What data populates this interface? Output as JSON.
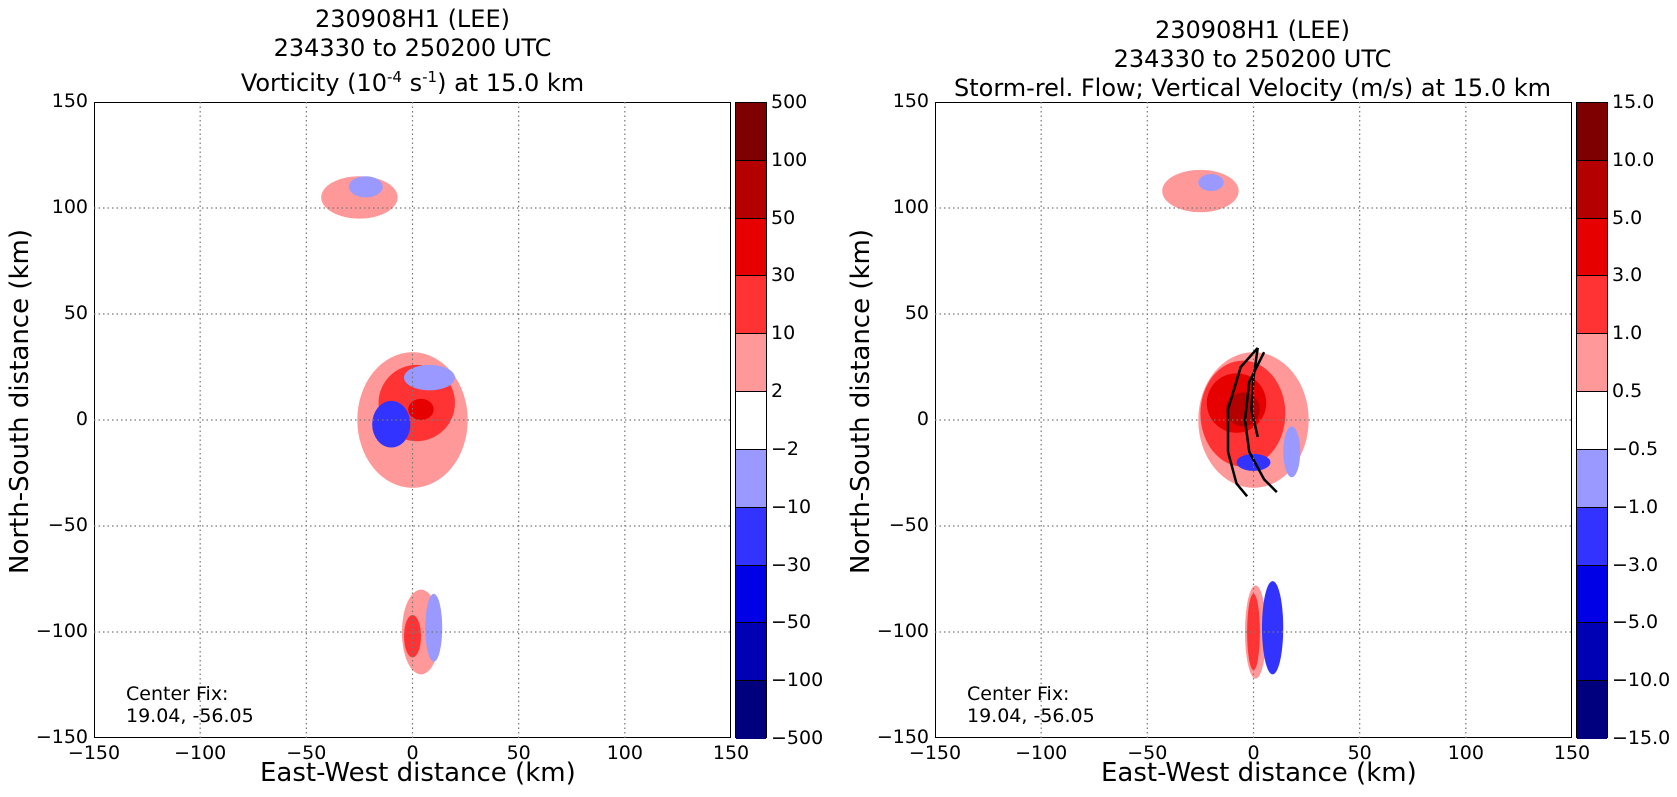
{
  "colorbar_colors": [
    "#7f0000",
    "#b50000",
    "#e60000",
    "#ff3333",
    "#ff9999",
    "#ffffff",
    "#9999ff",
    "#3333ff",
    "#0000e6",
    "#0000b5",
    "#00007f"
  ],
  "chart_data": [
    {
      "type": "heatmap",
      "title": [
        "230908H1 (LEE)",
        "234330 to 250200 UTC"
      ],
      "title_line3_prefix": "Vorticity (10",
      "title_line3_sup1": "-4",
      "title_line3_mid": " s",
      "title_line3_sup2": "-1",
      "title_line3_suffix": ") at 15.0 km",
      "xlabel": "East-West distance (km)",
      "ylabel": "North-South distance (km)",
      "xlim": [
        -150,
        150
      ],
      "ylim": [
        -150,
        150
      ],
      "xticks": [
        "−150",
        "−100",
        "−50",
        "0",
        "50",
        "100",
        "150"
      ],
      "yticks": [
        "150",
        "100",
        "50",
        "0",
        "−50",
        "−100",
        "−150"
      ],
      "grid": true,
      "annotation": [
        "Center Fix:",
        "19.04, -56.05"
      ],
      "colorbar_levels": [
        "500",
        "100",
        "50",
        "30",
        "10",
        "2",
        "−2",
        "−10",
        "−30",
        "−50",
        "−100",
        "−500"
      ],
      "regions": [
        {
          "x": -25,
          "y": 105,
          "rx": 18,
          "ry": 10,
          "level": 1,
          "color": "#ff9999"
        },
        {
          "x": -22,
          "y": 110,
          "rx": 8,
          "ry": 5,
          "level": -1,
          "color": "#9999ff"
        },
        {
          "x": 0,
          "y": 0,
          "rx": 26,
          "ry": 32,
          "level": 1,
          "color": "#ff9999"
        },
        {
          "x": 2,
          "y": 8,
          "rx": 18,
          "ry": 18,
          "level": 2,
          "color": "#ff3333"
        },
        {
          "x": -10,
          "y": -2,
          "rx": 9,
          "ry": 11,
          "level": -2,
          "color": "#3333ff"
        },
        {
          "x": 8,
          "y": 20,
          "rx": 12,
          "ry": 6,
          "level": -1,
          "color": "#9999ff"
        },
        {
          "x": 4,
          "y": 5,
          "rx": 6,
          "ry": 5,
          "level": 3,
          "color": "#e60000"
        },
        {
          "x": 4,
          "y": -100,
          "rx": 9,
          "ry": 20,
          "level": 1,
          "color": "#ff9999"
        },
        {
          "x": 0,
          "y": -102,
          "rx": 4,
          "ry": 10,
          "level": 2,
          "color": "#ff3333"
        },
        {
          "x": 10,
          "y": -98,
          "rx": 4,
          "ry": 16,
          "level": -1,
          "color": "#9999ff"
        }
      ]
    },
    {
      "type": "heatmap",
      "title": [
        "230908H1 (LEE)",
        "234330 to 250200 UTC",
        "Storm-rel. Flow; Vertical Velocity (m/s) at 15.0 km"
      ],
      "xlabel": "East-West distance (km)",
      "ylabel": "North-South distance (km)",
      "xlim": [
        -150,
        150
      ],
      "ylim": [
        -150,
        150
      ],
      "xticks": [
        "−150",
        "−100",
        "−50",
        "0",
        "50",
        "100",
        "150"
      ],
      "yticks": [
        "150",
        "100",
        "50",
        "0",
        "−50",
        "−100",
        "−150"
      ],
      "grid": true,
      "annotation": [
        "Center Fix:",
        "19.04, -56.05"
      ],
      "colorbar_levels": [
        "15.0",
        "10.0",
        "5.0",
        "3.0",
        "1.0",
        "0.5",
        "−0.5",
        "−1.0",
        "−3.0",
        "−5.0",
        "−10.0",
        "−15.0"
      ],
      "regions": [
        {
          "x": -25,
          "y": 108,
          "rx": 18,
          "ry": 10,
          "level": 1,
          "color": "#ff9999"
        },
        {
          "x": -20,
          "y": 112,
          "rx": 6,
          "ry": 4,
          "level": -1,
          "color": "#9999ff"
        },
        {
          "x": 0,
          "y": 0,
          "rx": 26,
          "ry": 32,
          "level": 1,
          "color": "#ff9999"
        },
        {
          "x": -5,
          "y": 3,
          "rx": 20,
          "ry": 25,
          "level": 2,
          "color": "#ff3333"
        },
        {
          "x": -8,
          "y": 8,
          "rx": 14,
          "ry": 14,
          "level": 3,
          "color": "#e60000"
        },
        {
          "x": -5,
          "y": 5,
          "rx": 8,
          "ry": 8,
          "level": 4,
          "color": "#b50000"
        },
        {
          "x": 0,
          "y": -20,
          "rx": 8,
          "ry": 4,
          "level": -2,
          "color": "#3333ff"
        },
        {
          "x": 18,
          "y": -15,
          "rx": 4,
          "ry": 12,
          "level": -1,
          "color": "#9999ff"
        },
        {
          "x": 1,
          "y": -100,
          "rx": 5,
          "ry": 22,
          "level": 1,
          "color": "#ff9999"
        },
        {
          "x": 0,
          "y": -100,
          "rx": 3,
          "ry": 18,
          "level": 2,
          "color": "#ff3333"
        },
        {
          "x": 9,
          "y": -98,
          "rx": 5,
          "ry": 22,
          "level": -2,
          "color": "#3333ff"
        }
      ],
      "flow_lines": [
        [
          [
            2,
            34
          ],
          [
            -6,
            25
          ],
          [
            -12,
            5
          ],
          [
            -12,
            -15
          ],
          [
            -8,
            -30
          ],
          [
            -3,
            -36
          ]
        ],
        [
          [
            5,
            32
          ],
          [
            -2,
            18
          ],
          [
            -4,
            0
          ],
          [
            -2,
            -15
          ],
          [
            5,
            -28
          ],
          [
            11,
            -34
          ]
        ],
        [
          [
            2,
            34
          ],
          [
            0,
            20
          ],
          [
            -1,
            5
          ],
          [
            2,
            -8
          ]
        ]
      ]
    }
  ]
}
